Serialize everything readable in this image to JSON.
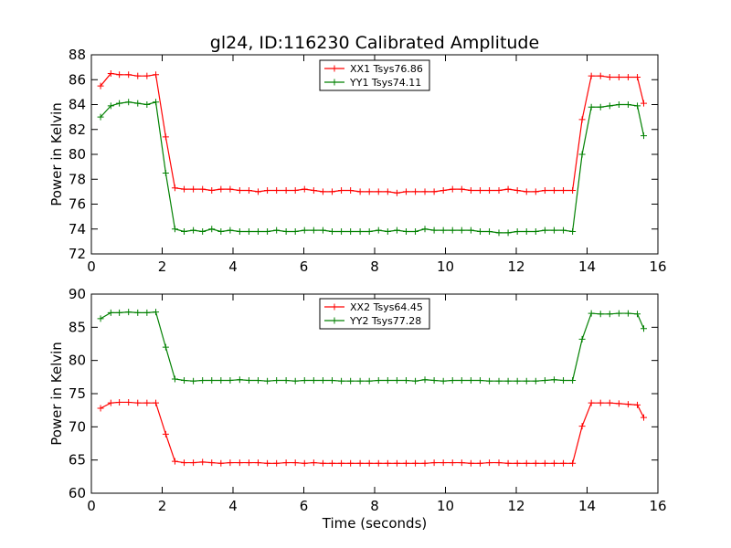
{
  "title": "gl24, ID:116230 Calibrated Amplitude",
  "colors": {
    "xx": "#ff0000",
    "yy": "#008000"
  },
  "chart_data": [
    {
      "type": "line",
      "xlabel": "",
      "ylabel": "Power in Kelvin",
      "xlim": [
        0,
        16
      ],
      "ylim": [
        72,
        88
      ],
      "xticks": [
        0,
        2,
        4,
        6,
        8,
        10,
        12,
        14,
        16
      ],
      "yticks": [
        72,
        74,
        76,
        78,
        80,
        82,
        84,
        86,
        88
      ],
      "legend_position": "top-center",
      "grid": false,
      "x": [
        0.26,
        0.55,
        0.79,
        1.05,
        1.31,
        1.57,
        1.82,
        2.1,
        2.36,
        2.62,
        2.88,
        3.14,
        3.4,
        3.66,
        3.92,
        4.19,
        4.45,
        4.71,
        4.97,
        5.23,
        5.5,
        5.76,
        6.02,
        6.28,
        6.54,
        6.8,
        7.06,
        7.32,
        7.59,
        7.85,
        8.11,
        8.37,
        8.63,
        8.89,
        9.15,
        9.42,
        9.68,
        9.94,
        10.2,
        10.46,
        10.72,
        10.98,
        11.24,
        11.51,
        11.77,
        12.03,
        12.29,
        12.55,
        12.81,
        13.07,
        13.33,
        13.59,
        13.86,
        14.12,
        14.38,
        14.64,
        14.9,
        15.16,
        15.42,
        15.6
      ],
      "series": [
        {
          "name": "XX1 Tsys76.86",
          "color_key": "xx",
          "values": [
            85.5,
            86.5,
            86.4,
            86.4,
            86.3,
            86.3,
            86.4,
            81.4,
            77.3,
            77.2,
            77.2,
            77.2,
            77.1,
            77.2,
            77.2,
            77.1,
            77.1,
            77.0,
            77.1,
            77.1,
            77.1,
            77.1,
            77.2,
            77.1,
            77.0,
            77.0,
            77.1,
            77.1,
            77.0,
            77.0,
            77.0,
            77.0,
            76.9,
            77.0,
            77.0,
            77.0,
            77.0,
            77.1,
            77.2,
            77.2,
            77.1,
            77.1,
            77.1,
            77.1,
            77.2,
            77.1,
            77.0,
            77.0,
            77.1,
            77.1,
            77.1,
            77.1,
            82.8,
            86.3,
            86.3,
            86.2,
            86.2,
            86.2,
            86.2,
            84.1
          ]
        },
        {
          "name": "YY1 Tsys74.11",
          "color_key": "yy",
          "values": [
            83.0,
            83.9,
            84.1,
            84.2,
            84.1,
            84.0,
            84.2,
            78.5,
            74.0,
            73.8,
            73.9,
            73.8,
            74.0,
            73.8,
            73.9,
            73.8,
            73.8,
            73.8,
            73.8,
            73.9,
            73.8,
            73.8,
            73.9,
            73.9,
            73.9,
            73.8,
            73.8,
            73.8,
            73.8,
            73.8,
            73.9,
            73.8,
            73.9,
            73.8,
            73.8,
            74.0,
            73.9,
            73.9,
            73.9,
            73.9,
            73.9,
            73.8,
            73.8,
            73.7,
            73.7,
            73.8,
            73.8,
            73.8,
            73.9,
            73.9,
            73.9,
            73.8,
            80.0,
            83.8,
            83.8,
            83.9,
            84.0,
            84.0,
            83.9,
            81.5
          ]
        }
      ]
    },
    {
      "type": "line",
      "xlabel": "Time (seconds)",
      "ylabel": "Power in Kelvin",
      "xlim": [
        0,
        16
      ],
      "ylim": [
        60,
        90
      ],
      "xticks": [
        0,
        2,
        4,
        6,
        8,
        10,
        12,
        14,
        16
      ],
      "yticks": [
        60,
        65,
        70,
        75,
        80,
        85,
        90
      ],
      "legend_position": "top-center",
      "grid": false,
      "x": [
        0.26,
        0.55,
        0.79,
        1.05,
        1.31,
        1.57,
        1.82,
        2.1,
        2.36,
        2.62,
        2.88,
        3.14,
        3.4,
        3.66,
        3.92,
        4.19,
        4.45,
        4.71,
        4.97,
        5.23,
        5.5,
        5.76,
        6.02,
        6.28,
        6.54,
        6.8,
        7.06,
        7.32,
        7.59,
        7.85,
        8.11,
        8.37,
        8.63,
        8.89,
        9.15,
        9.42,
        9.68,
        9.94,
        10.2,
        10.46,
        10.72,
        10.98,
        11.24,
        11.51,
        11.77,
        12.03,
        12.29,
        12.55,
        12.81,
        13.07,
        13.33,
        13.59,
        13.86,
        14.12,
        14.38,
        14.64,
        14.9,
        15.16,
        15.42,
        15.6
      ],
      "series": [
        {
          "name": "XX2 Tsys64.45",
          "color_key": "xx",
          "values": [
            72.8,
            73.6,
            73.7,
            73.7,
            73.6,
            73.6,
            73.6,
            68.9,
            64.8,
            64.6,
            64.6,
            64.7,
            64.6,
            64.5,
            64.6,
            64.6,
            64.6,
            64.6,
            64.5,
            64.5,
            64.6,
            64.6,
            64.5,
            64.6,
            64.5,
            64.5,
            64.5,
            64.5,
            64.5,
            64.5,
            64.5,
            64.5,
            64.5,
            64.5,
            64.5,
            64.5,
            64.6,
            64.6,
            64.6,
            64.6,
            64.5,
            64.5,
            64.6,
            64.6,
            64.5,
            64.5,
            64.5,
            64.5,
            64.5,
            64.5,
            64.5,
            64.5,
            70.1,
            73.6,
            73.6,
            73.6,
            73.5,
            73.4,
            73.3,
            71.4
          ]
        },
        {
          "name": "YY2 Tsys77.28",
          "color_key": "yy",
          "values": [
            86.3,
            87.2,
            87.2,
            87.3,
            87.2,
            87.2,
            87.3,
            82.0,
            77.2,
            77.0,
            76.9,
            77.0,
            77.0,
            77.0,
            77.0,
            77.1,
            77.0,
            77.0,
            76.9,
            77.0,
            77.0,
            76.9,
            77.0,
            77.0,
            77.0,
            77.0,
            76.9,
            76.9,
            76.9,
            76.9,
            77.0,
            77.0,
            77.0,
            77.0,
            76.9,
            77.1,
            77.0,
            76.9,
            77.0,
            77.0,
            77.0,
            77.0,
            76.9,
            76.9,
            76.9,
            76.9,
            76.9,
            76.9,
            77.0,
            77.1,
            77.0,
            77.0,
            83.2,
            87.1,
            87.0,
            87.0,
            87.1,
            87.1,
            87.0,
            84.8
          ]
        }
      ]
    }
  ]
}
